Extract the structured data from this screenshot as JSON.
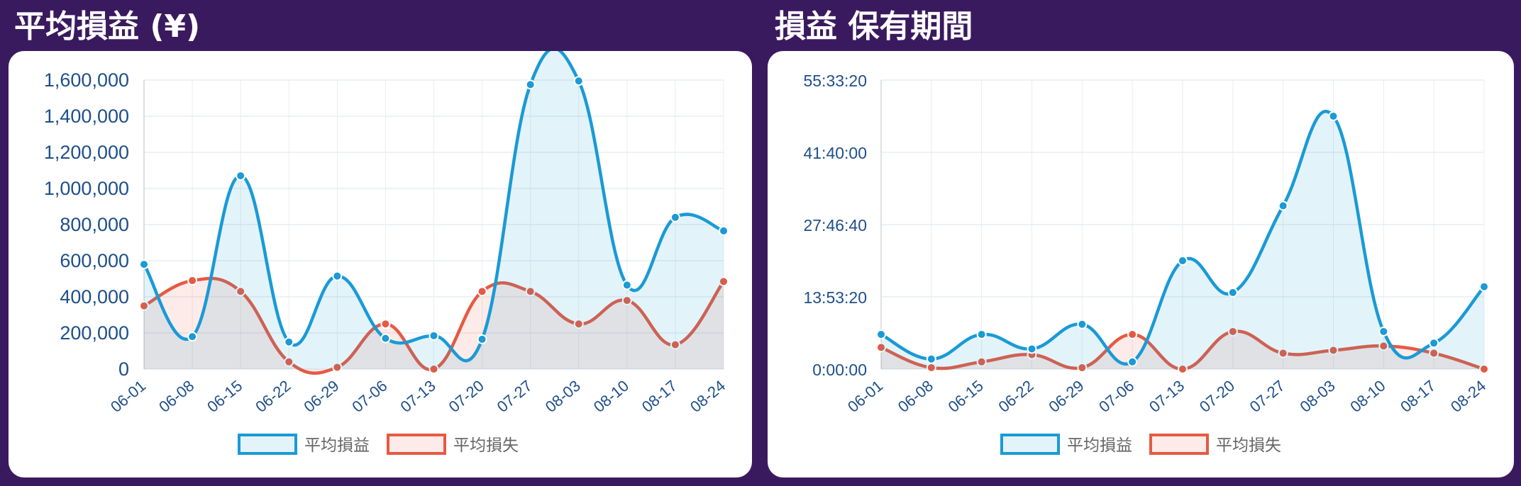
{
  "colors": {
    "background": "#3a1a5e",
    "profit": "#1a9ad6",
    "profit_fill": "rgba(26,154,214,0.12)",
    "loss": "#e55a43",
    "loss_fill": "rgba(229,90,67,0.12)",
    "gridline": "#e9edf1",
    "axis_text": "#1e4f8a"
  },
  "chart_data": [
    {
      "type": "area",
      "title": "平均損益 (¥)",
      "xlabel": "",
      "ylabel": "",
      "categories": [
        "06-01",
        "06-08",
        "06-15",
        "06-22",
        "06-29",
        "07-06",
        "07-13",
        "07-20",
        "07-27",
        "08-03",
        "08-10",
        "08-17",
        "08-24"
      ],
      "ylim": [
        0,
        1600000
      ],
      "yticks": [
        0,
        200000,
        400000,
        600000,
        800000,
        1000000,
        1200000,
        1400000,
        1600000
      ],
      "ytick_labels": [
        "0",
        "200,000",
        "400,000",
        "600,000",
        "800,000",
        "1,000,000",
        "1,200,000",
        "1,400,000",
        "1,600,000"
      ],
      "grid": true,
      "legend_position": "bottom",
      "series": [
        {
          "name": "平均損益",
          "color": "profit",
          "values": [
            580000,
            180000,
            1070000,
            150000,
            515000,
            170000,
            185000,
            165000,
            1575000,
            1595000,
            465000,
            840000,
            765000
          ]
        },
        {
          "name": "平均損失",
          "color": "loss",
          "values": [
            350000,
            490000,
            430000,
            40000,
            10000,
            250000,
            0,
            430000,
            430000,
            250000,
            380000,
            135000,
            485000
          ]
        }
      ]
    },
    {
      "type": "area",
      "title": "損益 保有期間",
      "xlabel": "",
      "ylabel": "",
      "categories": [
        "06-01",
        "06-08",
        "06-15",
        "06-22",
        "06-29",
        "07-06",
        "07-13",
        "07-20",
        "07-27",
        "08-03",
        "08-10",
        "08-17",
        "08-24"
      ],
      "ylim": [
        0,
        200000
      ],
      "yticks": [
        0,
        50000,
        100000,
        150000,
        200000
      ],
      "ytick_labels": [
        "0:00:00",
        "13:53:20",
        "27:46:40",
        "41:40:00",
        "55:33:20"
      ],
      "grid": true,
      "legend_position": "bottom",
      "series": [
        {
          "name": "平均損益",
          "color": "profit",
          "values": [
            24000,
            7000,
            24000,
            14000,
            31000,
            5000,
            75000,
            53000,
            113000,
            175000,
            26000,
            18000,
            57000
          ]
        },
        {
          "name": "平均損失",
          "color": "loss",
          "values": [
            15000,
            1000,
            5000,
            10000,
            1000,
            24000,
            0,
            26000,
            11000,
            13000,
            16000,
            11000,
            0
          ]
        }
      ]
    }
  ]
}
